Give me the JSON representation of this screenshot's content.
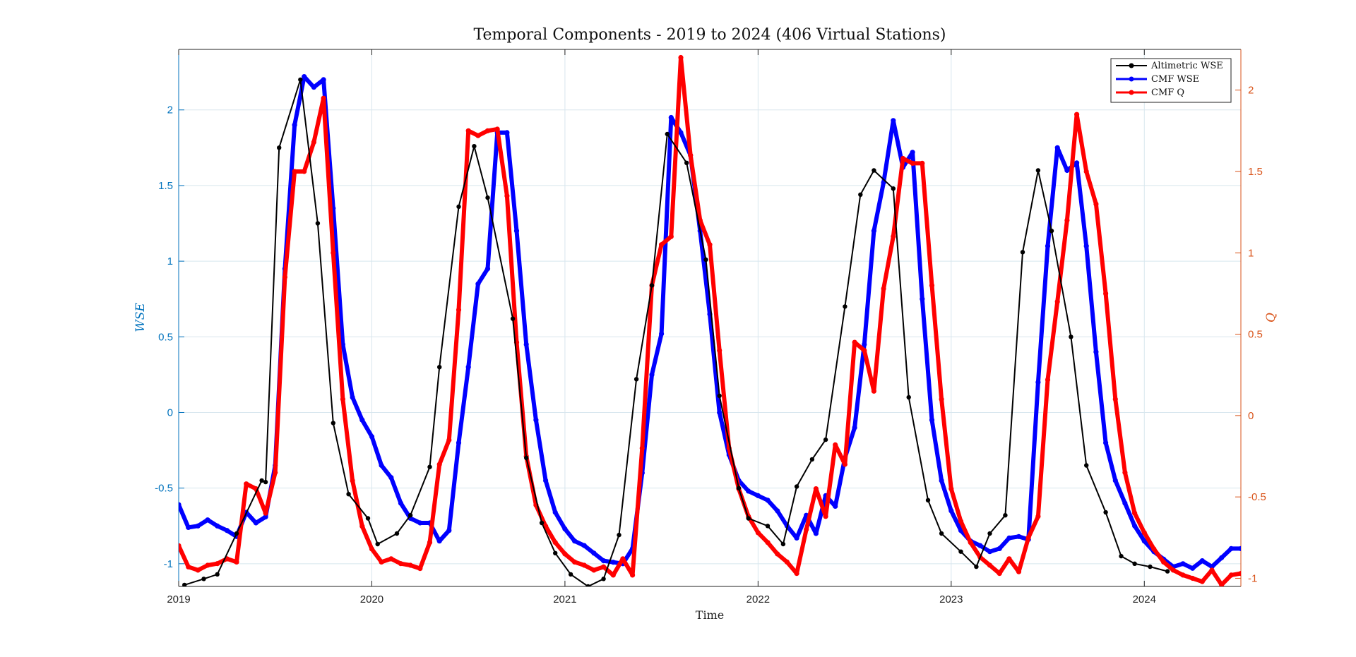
{
  "chart_data": {
    "type": "line",
    "title": "Temporal Components - 2019 to 2024 (406 Virtual Stations)",
    "xlabel": "Time",
    "ylabel_left": "WSE",
    "ylabel_right": "Q",
    "xlim": [
      2019.0,
      2024.5
    ],
    "x_ticks": [
      2019,
      2020,
      2021,
      2022,
      2023,
      2024
    ],
    "ylim_left": [
      -1.15,
      2.4
    ],
    "ylim_right": [
      -1.05,
      2.25
    ],
    "y_ticks_left": [
      -1,
      -0.5,
      0,
      0.5,
      1,
      1.5,
      2
    ],
    "y_ticks_right": [
      -1,
      -0.5,
      0,
      0.5,
      1,
      1.5,
      2
    ],
    "grid": true,
    "legend_position": "top-right",
    "colors": {
      "left_axis": "#0072bd",
      "right_axis": "#d95319",
      "altimetric": "#000000",
      "cmf_wse": "#0000ff",
      "cmf_q": "#ff0000"
    },
    "series": [
      {
        "name": "Altimetric WSE",
        "axis": "left",
        "style": "thin-marker",
        "x": [
          2019.03,
          2019.13,
          2019.2,
          2019.3,
          2019.43,
          2019.45,
          2019.52,
          2019.63,
          2019.72,
          2019.8,
          2019.88,
          2019.98,
          2020.03,
          2020.13,
          2020.2,
          2020.3,
          2020.35,
          2020.45,
          2020.53,
          2020.6,
          2020.73,
          2020.8,
          2020.88,
          2020.95,
          2021.03,
          2021.12,
          2021.2,
          2021.28,
          2021.37,
          2021.45,
          2021.53,
          2021.63,
          2021.73,
          2021.8,
          2021.9,
          2021.95,
          2022.05,
          2022.13,
          2022.2,
          2022.28,
          2022.35,
          2022.45,
          2022.53,
          2022.6,
          2022.7,
          2022.78,
          2022.88,
          2022.95,
          2023.05,
          2023.13,
          2023.2,
          2023.28,
          2023.37,
          2023.45,
          2023.52,
          2023.62,
          2023.7,
          2023.8,
          2023.88,
          2023.95,
          2024.03,
          2024.12
        ],
        "y": [
          -1.14,
          -1.1,
          -1.07,
          -0.8,
          -0.45,
          -0.46,
          1.75,
          2.2,
          1.25,
          -0.07,
          -0.54,
          -0.7,
          -0.87,
          -0.8,
          -0.68,
          -0.36,
          0.3,
          1.36,
          1.76,
          1.42,
          0.62,
          -0.3,
          -0.73,
          -0.93,
          -1.07,
          -1.15,
          -1.1,
          -0.81,
          0.22,
          0.84,
          1.84,
          1.65,
          1.01,
          0.11,
          -0.5,
          -0.7,
          -0.75,
          -0.87,
          -0.49,
          -0.31,
          -0.18,
          0.7,
          1.44,
          1.6,
          1.48,
          0.1,
          -0.58,
          -0.8,
          -0.92,
          -1.02,
          -0.8,
          -0.68,
          1.06,
          1.6,
          1.2,
          0.5,
          -0.35,
          -0.66,
          -0.95,
          -1.0,
          -1.02,
          -1.05
        ]
      },
      {
        "name": "CMF WSE",
        "axis": "left",
        "style": "thick-marker",
        "x": [
          2019.0,
          2019.05,
          2019.1,
          2019.15,
          2019.2,
          2019.25,
          2019.3,
          2019.35,
          2019.4,
          2019.45,
          2019.5,
          2019.55,
          2019.6,
          2019.65,
          2019.7,
          2019.75,
          2019.8,
          2019.85,
          2019.9,
          2019.95,
          2020.0,
          2020.05,
          2020.1,
          2020.15,
          2020.2,
          2020.25,
          2020.3,
          2020.35,
          2020.4,
          2020.45,
          2020.5,
          2020.55,
          2020.6,
          2020.65,
          2020.7,
          2020.75,
          2020.8,
          2020.85,
          2020.9,
          2020.95,
          2021.0,
          2021.05,
          2021.1,
          2021.15,
          2021.2,
          2021.25,
          2021.3,
          2021.35,
          2021.4,
          2021.45,
          2021.5,
          2021.55,
          2021.6,
          2021.65,
          2021.7,
          2021.75,
          2021.8,
          2021.85,
          2021.9,
          2021.95,
          2022.0,
          2022.05,
          2022.1,
          2022.15,
          2022.2,
          2022.25,
          2022.3,
          2022.35,
          2022.4,
          2022.45,
          2022.5,
          2022.55,
          2022.6,
          2022.65,
          2022.7,
          2022.75,
          2022.8,
          2022.85,
          2022.9,
          2022.95,
          2023.0,
          2023.05,
          2023.1,
          2023.15,
          2023.2,
          2023.25,
          2023.3,
          2023.35,
          2023.4,
          2023.45,
          2023.5,
          2023.55,
          2023.6,
          2023.65,
          2023.7,
          2023.75,
          2023.8,
          2023.85,
          2023.9,
          2023.95,
          2024.0,
          2024.05,
          2024.1,
          2024.15,
          2024.2,
          2024.25,
          2024.3,
          2024.35,
          2024.4,
          2024.45,
          2024.5
        ],
        "y": [
          -0.61,
          -0.76,
          -0.75,
          -0.71,
          -0.75,
          -0.78,
          -0.82,
          -0.66,
          -0.73,
          -0.69,
          -0.35,
          0.95,
          1.9,
          2.22,
          2.15,
          2.2,
          1.35,
          0.45,
          0.1,
          -0.05,
          -0.16,
          -0.35,
          -0.43,
          -0.6,
          -0.7,
          -0.73,
          -0.73,
          -0.85,
          -0.78,
          -0.2,
          0.3,
          0.85,
          0.95,
          1.85,
          1.85,
          1.2,
          0.45,
          -0.05,
          -0.45,
          -0.66,
          -0.77,
          -0.85,
          -0.88,
          -0.93,
          -0.98,
          -0.99,
          -1.0,
          -0.9,
          -0.4,
          0.25,
          0.52,
          1.95,
          1.85,
          1.7,
          1.2,
          0.65,
          0.0,
          -0.28,
          -0.45,
          -0.52,
          -0.55,
          -0.58,
          -0.65,
          -0.75,
          -0.83,
          -0.68,
          -0.8,
          -0.55,
          -0.62,
          -0.3,
          -0.1,
          0.45,
          1.2,
          1.52,
          1.93,
          1.62,
          1.72,
          0.75,
          -0.05,
          -0.45,
          -0.65,
          -0.78,
          -0.85,
          -0.88,
          -0.92,
          -0.9,
          -0.83,
          -0.82,
          -0.84,
          0.2,
          1.1,
          1.75,
          1.6,
          1.65,
          1.1,
          0.4,
          -0.2,
          -0.45,
          -0.6,
          -0.75,
          -0.85,
          -0.92,
          -0.97,
          -1.02,
          -1.0,
          -1.03,
          -0.98,
          -1.02,
          -0.96,
          -0.9,
          -0.9
        ]
      },
      {
        "name": "CMF Q",
        "axis": "right",
        "style": "thick-marker",
        "x": [
          2019.0,
          2019.05,
          2019.1,
          2019.15,
          2019.2,
          2019.25,
          2019.3,
          2019.35,
          2019.4,
          2019.45,
          2019.5,
          2019.55,
          2019.6,
          2019.65,
          2019.7,
          2019.75,
          2019.8,
          2019.85,
          2019.9,
          2019.95,
          2020.0,
          2020.05,
          2020.1,
          2020.15,
          2020.2,
          2020.25,
          2020.3,
          2020.35,
          2020.4,
          2020.45,
          2020.5,
          2020.55,
          2020.6,
          2020.65,
          2020.7,
          2020.75,
          2020.8,
          2020.85,
          2020.9,
          2020.95,
          2021.0,
          2021.05,
          2021.1,
          2021.15,
          2021.2,
          2021.25,
          2021.3,
          2021.35,
          2021.4,
          2021.45,
          2021.5,
          2021.55,
          2021.6,
          2021.65,
          2021.7,
          2021.75,
          2021.8,
          2021.85,
          2021.9,
          2021.95,
          2022.0,
          2022.05,
          2022.1,
          2022.15,
          2022.2,
          2022.25,
          2022.3,
          2022.35,
          2022.4,
          2022.45,
          2022.5,
          2022.55,
          2022.6,
          2022.65,
          2022.7,
          2022.75,
          2022.8,
          2022.85,
          2022.9,
          2022.95,
          2023.0,
          2023.05,
          2023.1,
          2023.15,
          2023.2,
          2023.25,
          2023.3,
          2023.35,
          2023.4,
          2023.45,
          2023.5,
          2023.55,
          2023.6,
          2023.65,
          2023.7,
          2023.75,
          2023.8,
          2023.85,
          2023.9,
          2023.95,
          2024.0,
          2024.05,
          2024.1,
          2024.15,
          2024.2,
          2024.25,
          2024.3,
          2024.35,
          2024.4,
          2024.45,
          2024.5
        ],
        "y": [
          -0.8,
          -0.93,
          -0.95,
          -0.92,
          -0.91,
          -0.88,
          -0.9,
          -0.42,
          -0.45,
          -0.6,
          -0.35,
          0.85,
          1.5,
          1.5,
          1.68,
          1.95,
          1.0,
          0.1,
          -0.4,
          -0.68,
          -0.82,
          -0.9,
          -0.88,
          -0.91,
          -0.92,
          -0.94,
          -0.78,
          -0.3,
          -0.15,
          0.65,
          1.75,
          1.72,
          1.75,
          1.76,
          1.35,
          0.45,
          -0.25,
          -0.55,
          -0.68,
          -0.78,
          -0.85,
          -0.9,
          -0.92,
          -0.95,
          -0.93,
          -0.98,
          -0.88,
          -0.98,
          -0.2,
          0.8,
          1.05,
          1.1,
          2.2,
          1.6,
          1.2,
          1.05,
          0.4,
          -0.2,
          -0.45,
          -0.62,
          -0.72,
          -0.78,
          -0.85,
          -0.9,
          -0.97,
          -0.7,
          -0.45,
          -0.62,
          -0.18,
          -0.3,
          0.45,
          0.4,
          0.15,
          0.78,
          1.1,
          1.58,
          1.55,
          1.55,
          0.8,
          0.1,
          -0.45,
          -0.65,
          -0.78,
          -0.87,
          -0.92,
          -0.97,
          -0.88,
          -0.96,
          -0.75,
          -0.62,
          0.22,
          0.7,
          1.2,
          1.85,
          1.5,
          1.3,
          0.75,
          0.1,
          -0.35,
          -0.6,
          -0.72,
          -0.82,
          -0.9,
          -0.95,
          -0.98,
          -1.0,
          -1.02,
          -0.95,
          -1.04,
          -0.98,
          -0.97
        ]
      }
    ]
  }
}
